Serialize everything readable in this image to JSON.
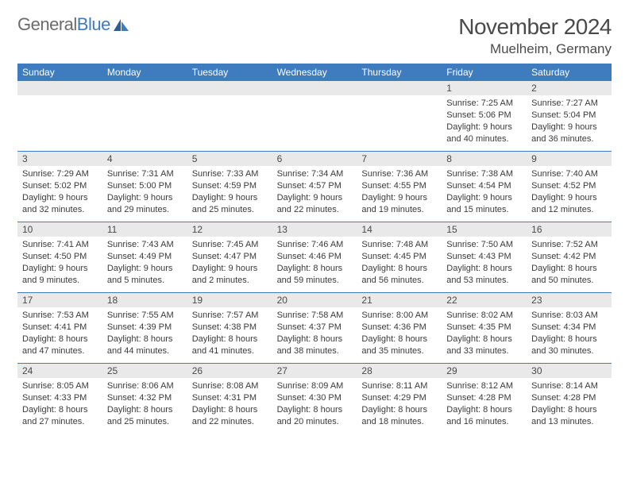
{
  "brand": {
    "word1": "General",
    "word2": "Blue"
  },
  "header": {
    "title": "November 2024",
    "location": "Muelheim, Germany"
  },
  "colors": {
    "headerBar": "#3f7bbf",
    "dayNumBg": "#e9e9e9",
    "weekDivider": "#3f7bbf",
    "text": "#333333",
    "titleText": "#4a4a4a",
    "logoGray": "#6b6b6b",
    "logoBlue": "#3f7bbf"
  },
  "dayNames": [
    "Sunday",
    "Monday",
    "Tuesday",
    "Wednesday",
    "Thursday",
    "Friday",
    "Saturday"
  ],
  "weeks": [
    [
      {
        "day": "",
        "sunrise": "",
        "sunset": "",
        "daylight": ""
      },
      {
        "day": "",
        "sunrise": "",
        "sunset": "",
        "daylight": ""
      },
      {
        "day": "",
        "sunrise": "",
        "sunset": "",
        "daylight": ""
      },
      {
        "day": "",
        "sunrise": "",
        "sunset": "",
        "daylight": ""
      },
      {
        "day": "",
        "sunrise": "",
        "sunset": "",
        "daylight": ""
      },
      {
        "day": "1",
        "sunrise": "Sunrise: 7:25 AM",
        "sunset": "Sunset: 5:06 PM",
        "daylight": "Daylight: 9 hours and 40 minutes."
      },
      {
        "day": "2",
        "sunrise": "Sunrise: 7:27 AM",
        "sunset": "Sunset: 5:04 PM",
        "daylight": "Daylight: 9 hours and 36 minutes."
      }
    ],
    [
      {
        "day": "3",
        "sunrise": "Sunrise: 7:29 AM",
        "sunset": "Sunset: 5:02 PM",
        "daylight": "Daylight: 9 hours and 32 minutes."
      },
      {
        "day": "4",
        "sunrise": "Sunrise: 7:31 AM",
        "sunset": "Sunset: 5:00 PM",
        "daylight": "Daylight: 9 hours and 29 minutes."
      },
      {
        "day": "5",
        "sunrise": "Sunrise: 7:33 AM",
        "sunset": "Sunset: 4:59 PM",
        "daylight": "Daylight: 9 hours and 25 minutes."
      },
      {
        "day": "6",
        "sunrise": "Sunrise: 7:34 AM",
        "sunset": "Sunset: 4:57 PM",
        "daylight": "Daylight: 9 hours and 22 minutes."
      },
      {
        "day": "7",
        "sunrise": "Sunrise: 7:36 AM",
        "sunset": "Sunset: 4:55 PM",
        "daylight": "Daylight: 9 hours and 19 minutes."
      },
      {
        "day": "8",
        "sunrise": "Sunrise: 7:38 AM",
        "sunset": "Sunset: 4:54 PM",
        "daylight": "Daylight: 9 hours and 15 minutes."
      },
      {
        "day": "9",
        "sunrise": "Sunrise: 7:40 AM",
        "sunset": "Sunset: 4:52 PM",
        "daylight": "Daylight: 9 hours and 12 minutes."
      }
    ],
    [
      {
        "day": "10",
        "sunrise": "Sunrise: 7:41 AM",
        "sunset": "Sunset: 4:50 PM",
        "daylight": "Daylight: 9 hours and 9 minutes."
      },
      {
        "day": "11",
        "sunrise": "Sunrise: 7:43 AM",
        "sunset": "Sunset: 4:49 PM",
        "daylight": "Daylight: 9 hours and 5 minutes."
      },
      {
        "day": "12",
        "sunrise": "Sunrise: 7:45 AM",
        "sunset": "Sunset: 4:47 PM",
        "daylight": "Daylight: 9 hours and 2 minutes."
      },
      {
        "day": "13",
        "sunrise": "Sunrise: 7:46 AM",
        "sunset": "Sunset: 4:46 PM",
        "daylight": "Daylight: 8 hours and 59 minutes."
      },
      {
        "day": "14",
        "sunrise": "Sunrise: 7:48 AM",
        "sunset": "Sunset: 4:45 PM",
        "daylight": "Daylight: 8 hours and 56 minutes."
      },
      {
        "day": "15",
        "sunrise": "Sunrise: 7:50 AM",
        "sunset": "Sunset: 4:43 PM",
        "daylight": "Daylight: 8 hours and 53 minutes."
      },
      {
        "day": "16",
        "sunrise": "Sunrise: 7:52 AM",
        "sunset": "Sunset: 4:42 PM",
        "daylight": "Daylight: 8 hours and 50 minutes."
      }
    ],
    [
      {
        "day": "17",
        "sunrise": "Sunrise: 7:53 AM",
        "sunset": "Sunset: 4:41 PM",
        "daylight": "Daylight: 8 hours and 47 minutes."
      },
      {
        "day": "18",
        "sunrise": "Sunrise: 7:55 AM",
        "sunset": "Sunset: 4:39 PM",
        "daylight": "Daylight: 8 hours and 44 minutes."
      },
      {
        "day": "19",
        "sunrise": "Sunrise: 7:57 AM",
        "sunset": "Sunset: 4:38 PM",
        "daylight": "Daylight: 8 hours and 41 minutes."
      },
      {
        "day": "20",
        "sunrise": "Sunrise: 7:58 AM",
        "sunset": "Sunset: 4:37 PM",
        "daylight": "Daylight: 8 hours and 38 minutes."
      },
      {
        "day": "21",
        "sunrise": "Sunrise: 8:00 AM",
        "sunset": "Sunset: 4:36 PM",
        "daylight": "Daylight: 8 hours and 35 minutes."
      },
      {
        "day": "22",
        "sunrise": "Sunrise: 8:02 AM",
        "sunset": "Sunset: 4:35 PM",
        "daylight": "Daylight: 8 hours and 33 minutes."
      },
      {
        "day": "23",
        "sunrise": "Sunrise: 8:03 AM",
        "sunset": "Sunset: 4:34 PM",
        "daylight": "Daylight: 8 hours and 30 minutes."
      }
    ],
    [
      {
        "day": "24",
        "sunrise": "Sunrise: 8:05 AM",
        "sunset": "Sunset: 4:33 PM",
        "daylight": "Daylight: 8 hours and 27 minutes."
      },
      {
        "day": "25",
        "sunrise": "Sunrise: 8:06 AM",
        "sunset": "Sunset: 4:32 PM",
        "daylight": "Daylight: 8 hours and 25 minutes."
      },
      {
        "day": "26",
        "sunrise": "Sunrise: 8:08 AM",
        "sunset": "Sunset: 4:31 PM",
        "daylight": "Daylight: 8 hours and 22 minutes."
      },
      {
        "day": "27",
        "sunrise": "Sunrise: 8:09 AM",
        "sunset": "Sunset: 4:30 PM",
        "daylight": "Daylight: 8 hours and 20 minutes."
      },
      {
        "day": "28",
        "sunrise": "Sunrise: 8:11 AM",
        "sunset": "Sunset: 4:29 PM",
        "daylight": "Daylight: 8 hours and 18 minutes."
      },
      {
        "day": "29",
        "sunrise": "Sunrise: 8:12 AM",
        "sunset": "Sunset: 4:28 PM",
        "daylight": "Daylight: 8 hours and 16 minutes."
      },
      {
        "day": "30",
        "sunrise": "Sunrise: 8:14 AM",
        "sunset": "Sunset: 4:28 PM",
        "daylight": "Daylight: 8 hours and 13 minutes."
      }
    ]
  ]
}
